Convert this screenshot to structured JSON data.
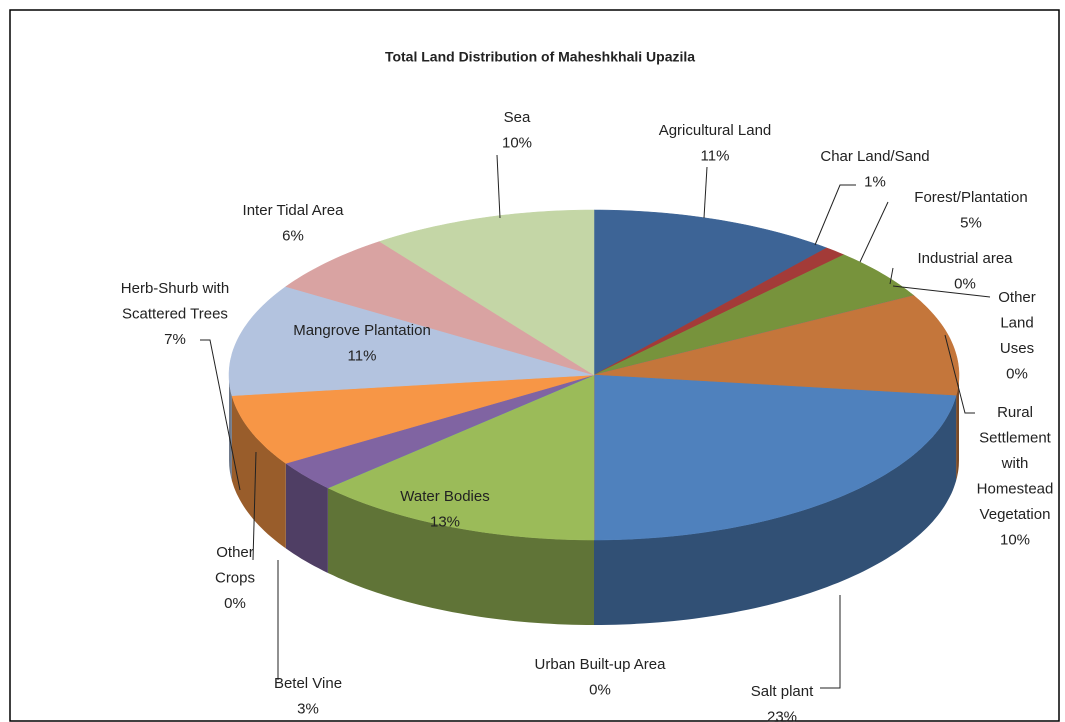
{
  "chart_data": {
    "type": "pie3d",
    "title": "Total Land Distribution of Maheshkhali Upazila",
    "categories": [
      "Agricultural Land",
      "Char Land/Sand",
      "Forest/Plantation",
      "Industrial area",
      "Other Land Uses",
      "Rural Settlement with Homestead Vegetation",
      "Salt plant",
      "Urban Built-up Area",
      "Water Bodies",
      "Other Crops",
      "Betel Vine",
      "Herb-Shurb with Scattered Trees",
      "Mangrove Plantation",
      "Inter Tidal Area",
      "Sea"
    ],
    "values": [
      11,
      1,
      5,
      0,
      0,
      10,
      23,
      0,
      13,
      0,
      3,
      7,
      11,
      6,
      10
    ],
    "value_labels": [
      "11%",
      "1%",
      "5%",
      "0%",
      "0%",
      "10%",
      "23%",
      "0%",
      "13%",
      "0%",
      "3%",
      "7%",
      "11%",
      "6%",
      "10%"
    ],
    "colors": [
      "#3d6496",
      "#a33b38",
      "#77933c",
      "#5f7da8",
      "#7f6599",
      "#c4763b",
      "#4f81bd",
      "#c0504d",
      "#9bbb59",
      "#4bacc6",
      "#8064a2",
      "#f79646",
      "#b3c3df",
      "#d9a3a2",
      "#c4d6a6"
    ]
  }
}
